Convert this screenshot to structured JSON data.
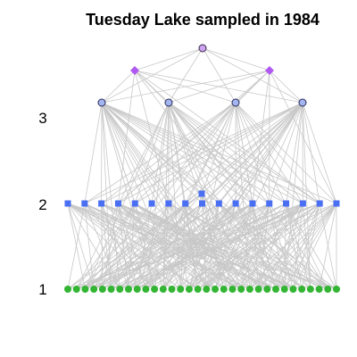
{
  "chart_data": {
    "type": "network",
    "title": "Tuesday Lake sampled in 1984",
    "y_tick_labels": [
      "1",
      "2",
      "3"
    ],
    "levels": [
      {
        "level": 1,
        "node_count": 32,
        "marker": "circle",
        "color": "#33b533"
      },
      {
        "level": 2,
        "node_count": 17,
        "marker": "square",
        "color": "#4a6ff2"
      },
      {
        "level": 3,
        "node_count": 4,
        "marker": "circle",
        "color": "#a4b6ef"
      },
      {
        "level": 3.5,
        "node_count": 2,
        "marker": "diamond",
        "color": "#b058f2"
      },
      {
        "level": 4,
        "node_count": 1,
        "marker": "circle",
        "color": "#cda3f0"
      }
    ],
    "edge_color": "#c8c8c8",
    "grid": false,
    "legend": "none"
  }
}
